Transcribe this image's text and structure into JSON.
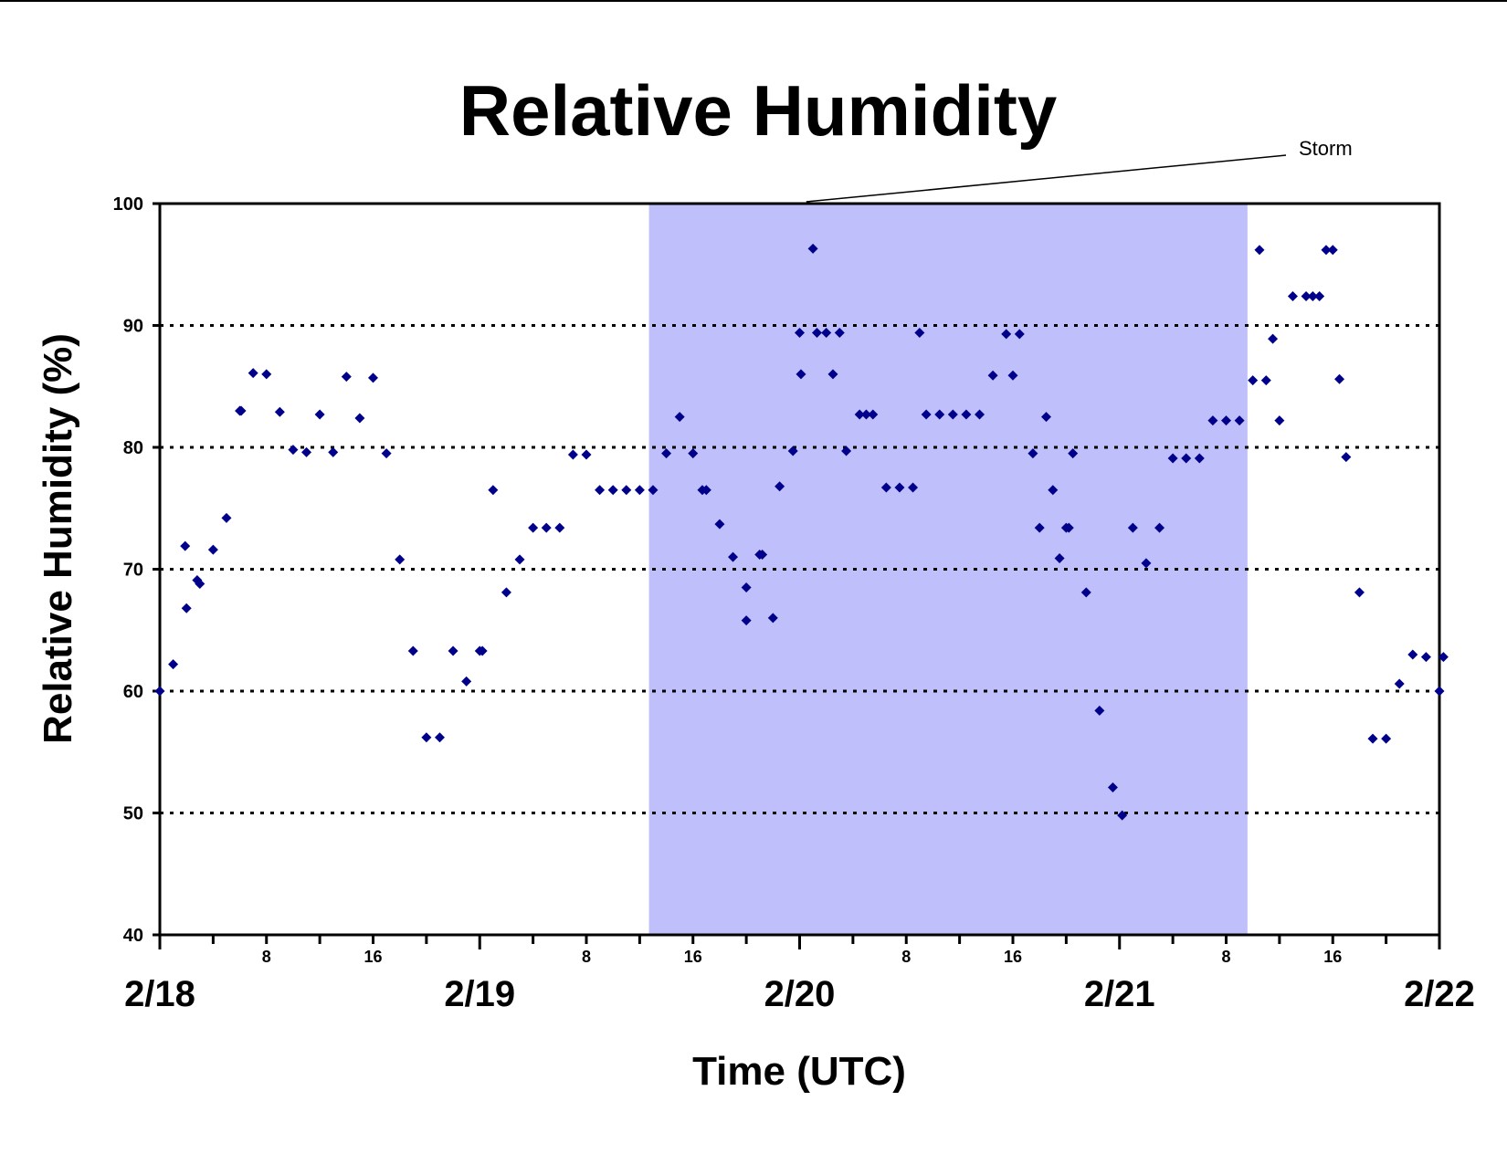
{
  "chart_data": {
    "type": "scatter",
    "title": "Relative Humidity",
    "xlabel": "Time (UTC)",
    "ylabel": "Relative Humidity (%)",
    "ylim": [
      40,
      100
    ],
    "yticks": [
      40,
      50,
      60,
      70,
      80,
      90,
      100
    ],
    "xlim": [
      "2/18 00:00",
      "2/22 00:00"
    ],
    "x_unit": "hours since 2/18 00:00 UTC",
    "x_hour_ticks": [
      "8",
      "16",
      "8",
      "16",
      "8",
      "16",
      "8",
      "16"
    ],
    "x_day_labels": [
      "2/18",
      "2/19",
      "2/20",
      "2/21",
      "2/22"
    ],
    "grid": "dotted horizontal",
    "marker_color": "#00008b",
    "shaded_region": {
      "label": "Storm",
      "start_hour": 36.7,
      "end_hour": 81.6,
      "color": "#bfbffb"
    },
    "series": [
      {
        "points": [
          [
            0,
            60
          ],
          [
            1,
            62.2
          ],
          [
            1.9,
            71.9
          ],
          [
            2,
            66.8
          ],
          [
            2.8,
            69.1
          ],
          [
            3,
            68.8
          ],
          [
            4,
            71.6
          ],
          [
            5,
            74.2
          ],
          [
            6,
            83
          ],
          [
            6.1,
            83
          ],
          [
            7,
            86.1
          ],
          [
            8,
            86
          ],
          [
            9,
            82.9
          ],
          [
            10,
            79.8
          ],
          [
            11,
            79.6
          ],
          [
            12,
            82.7
          ],
          [
            13,
            79.6
          ],
          [
            14,
            85.8
          ],
          [
            15,
            82.4
          ],
          [
            16,
            85.7
          ],
          [
            17,
            79.5
          ],
          [
            18,
            70.8
          ],
          [
            19,
            63.3
          ],
          [
            20,
            56.2
          ],
          [
            21,
            56.2
          ],
          [
            22,
            63.3
          ],
          [
            23,
            60.8
          ],
          [
            24,
            63.3
          ],
          [
            24.2,
            63.3
          ],
          [
            25,
            76.5
          ],
          [
            26,
            68.1
          ],
          [
            27,
            70.8
          ],
          [
            28,
            73.4
          ],
          [
            29,
            73.4
          ],
          [
            30,
            73.4
          ],
          [
            31,
            79.4
          ],
          [
            32,
            79.4
          ],
          [
            33,
            76.5
          ],
          [
            34,
            76.5
          ],
          [
            35,
            76.5
          ],
          [
            36,
            76.5
          ],
          [
            37,
            76.5
          ],
          [
            38,
            79.5
          ],
          [
            39,
            82.5
          ],
          [
            40,
            79.5
          ],
          [
            40.7,
            76.5
          ],
          [
            41,
            76.5
          ],
          [
            42,
            73.7
          ],
          [
            43,
            71
          ],
          [
            44,
            68.5
          ],
          [
            44,
            65.8
          ],
          [
            45,
            71.2
          ],
          [
            45.2,
            71.2
          ],
          [
            46,
            66
          ],
          [
            46.5,
            76.8
          ],
          [
            47.5,
            79.7
          ],
          [
            48,
            89.4
          ],
          [
            48.1,
            86
          ],
          [
            49,
            96.3
          ],
          [
            49.3,
            89.4
          ],
          [
            50,
            89.4
          ],
          [
            50.5,
            86
          ],
          [
            51,
            89.4
          ],
          [
            51.5,
            79.7
          ],
          [
            52.5,
            82.7
          ],
          [
            53,
            82.7
          ],
          [
            53.5,
            82.7
          ],
          [
            54.5,
            76.7
          ],
          [
            55.5,
            76.7
          ],
          [
            56.5,
            76.7
          ],
          [
            57,
            89.4
          ],
          [
            57.5,
            82.7
          ],
          [
            58.5,
            82.7
          ],
          [
            59.5,
            82.7
          ],
          [
            60.5,
            82.7
          ],
          [
            61.5,
            82.7
          ],
          [
            62.5,
            85.9
          ],
          [
            63.5,
            89.3
          ],
          [
            64,
            85.9
          ],
          [
            64.5,
            89.3
          ],
          [
            65.5,
            79.5
          ],
          [
            66,
            73.4
          ],
          [
            66.5,
            82.5
          ],
          [
            67,
            76.5
          ],
          [
            67.5,
            70.9
          ],
          [
            68,
            73.4
          ],
          [
            68.2,
            73.4
          ],
          [
            68.5,
            79.5
          ],
          [
            69.5,
            68.1
          ],
          [
            70.5,
            58.4
          ],
          [
            71.5,
            52.1
          ],
          [
            72.2,
            49.8
          ],
          [
            73,
            73.4
          ],
          [
            74,
            70.5
          ],
          [
            75,
            73.4
          ],
          [
            76,
            79.1
          ],
          [
            77,
            79.1
          ],
          [
            78,
            79.1
          ],
          [
            79,
            82.2
          ],
          [
            80,
            82.2
          ],
          [
            81,
            82.2
          ],
          [
            82,
            85.5
          ],
          [
            82.5,
            96.2
          ],
          [
            83,
            85.5
          ],
          [
            83.5,
            88.9
          ],
          [
            84,
            82.2
          ],
          [
            85,
            92.4
          ],
          [
            86,
            92.4
          ],
          [
            86.5,
            92.4
          ],
          [
            87,
            92.4
          ],
          [
            87.5,
            96.2
          ],
          [
            88,
            96.2
          ],
          [
            88.5,
            85.6
          ],
          [
            89,
            79.2
          ],
          [
            90,
            68.1
          ],
          [
            91,
            56.1
          ],
          [
            92,
            56.1
          ],
          [
            93,
            60.6
          ],
          [
            94,
            63
          ],
          [
            95,
            62.8
          ],
          [
            96,
            60
          ],
          [
            96.3,
            62.8
          ]
        ]
      }
    ]
  }
}
